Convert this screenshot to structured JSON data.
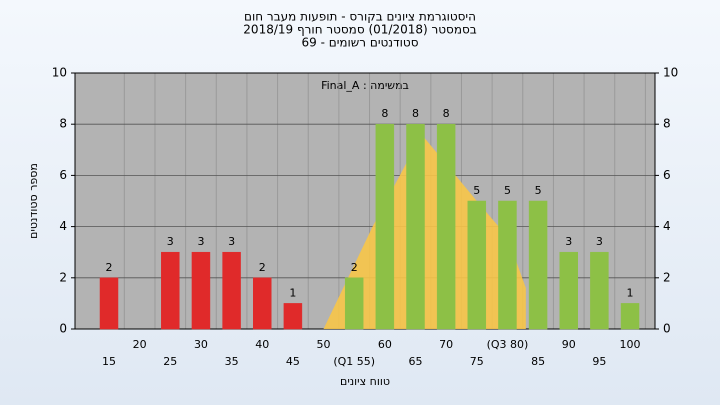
{
  "chart_data": {
    "type": "bar",
    "title": "היסטוגרמת ציונים בקורס - תופעות מעבר חום",
    "subtitle": "בסמסטר  (01/2018)  סמסטר חורף 2018/19",
    "subtitle2": "סטודנטים רשומים - 69",
    "annotation": "Final_A : במשימה",
    "x_label": "טווח ציונים",
    "y_label": "מספר סטודנטים",
    "categories": [
      "15",
      "20",
      "25",
      "30",
      "35",
      "40",
      "45",
      "50",
      "(Q1 55)",
      "60",
      "65",
      "70",
      "75",
      "(Q3 80)",
      "85",
      "90",
      "95",
      "100"
    ],
    "values": [
      2,
      0,
      3,
      3,
      3,
      2,
      1,
      0,
      2,
      8,
      8,
      8,
      5,
      5,
      5,
      3,
      3,
      1
    ],
    "colors": [
      "#e02a2a",
      "#e02a2a",
      "#e02a2a",
      "#e02a2a",
      "#e02a2a",
      "#e02a2a",
      "#e02a2a",
      "#e02a2a",
      "#8dc046",
      "#8dc046",
      "#8dc046",
      "#8dc046",
      "#8dc046",
      "#8dc046",
      "#8dc046",
      "#8dc046",
      "#8dc046",
      "#8dc046"
    ],
    "distribution": {
      "color": "#f7c548",
      "x": [
        7,
        8.6,
        10.2,
        12,
        13,
        13.6
      ],
      "values": [
        0,
        4,
        7.6,
        5,
        3.6,
        1.6
      ]
    },
    "ylim": [
      0,
      10
    ],
    "yticks": [
      0,
      2,
      4,
      6,
      8,
      10
    ],
    "grid": true
  }
}
